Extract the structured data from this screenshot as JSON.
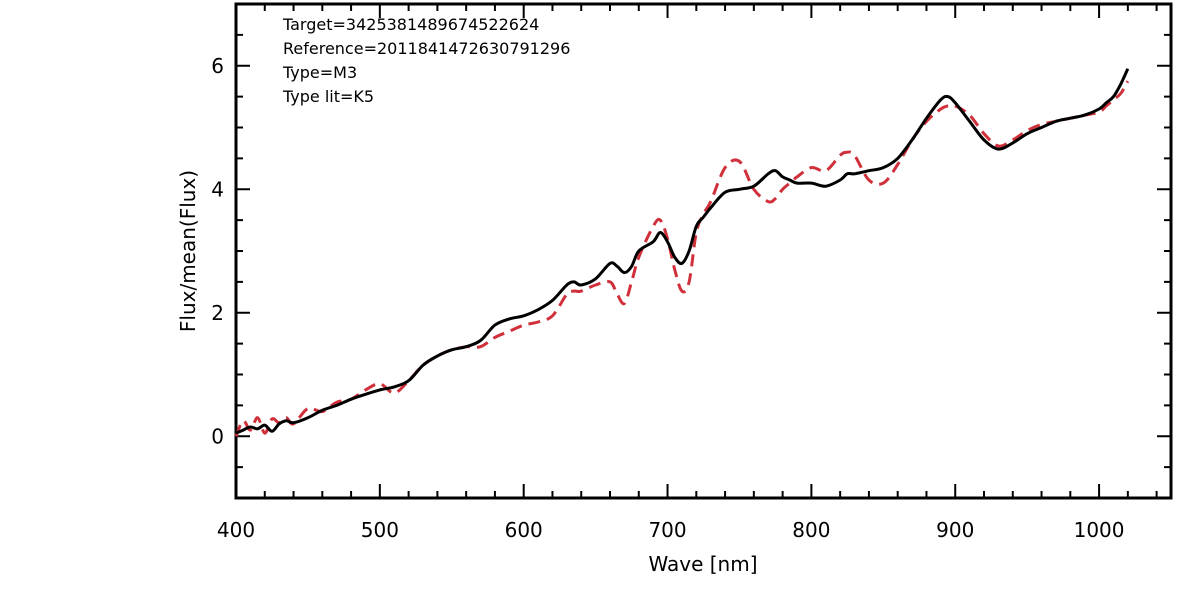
{
  "chart_data": {
    "type": "line",
    "xlabel": "Wave [nm]",
    "ylabel": "Flux/mean(Flux)",
    "xlim": [
      400,
      1050
    ],
    "ylim": [
      -1,
      7
    ],
    "xticks": [
      400,
      500,
      600,
      700,
      800,
      900,
      1000
    ],
    "yticks": [
      0,
      2,
      4,
      6
    ],
    "grid": false,
    "annotations": [
      "Target=3425381489674522624",
      "Reference=2011841472630791296",
      "Type=M3",
      "Type lit=K5"
    ],
    "colors": {
      "target": "#000000",
      "reference": "#d0303a"
    },
    "series": [
      {
        "style": "solid",
        "x": [
          400,
          405,
          410,
          415,
          420,
          425,
          430,
          435,
          440,
          450,
          460,
          470,
          480,
          490,
          500,
          510,
          520,
          530,
          540,
          550,
          560,
          570,
          580,
          590,
          600,
          610,
          620,
          630,
          635,
          640,
          650,
          660,
          665,
          670,
          675,
          680,
          690,
          695,
          700,
          705,
          710,
          715,
          720,
          725,
          730,
          740,
          750,
          760,
          770,
          775,
          780,
          785,
          790,
          800,
          810,
          820,
          825,
          830,
          840,
          850,
          860,
          870,
          880,
          890,
          895,
          900,
          910,
          920,
          930,
          940,
          950,
          960,
          970,
          980,
          990,
          1000,
          1005,
          1010,
          1015,
          1020
        ],
        "y": [
          0.05,
          0.1,
          0.15,
          0.12,
          0.18,
          0.08,
          0.2,
          0.25,
          0.22,
          0.3,
          0.42,
          0.5,
          0.6,
          0.68,
          0.75,
          0.8,
          0.9,
          1.15,
          1.3,
          1.4,
          1.45,
          1.55,
          1.8,
          1.9,
          1.95,
          2.05,
          2.2,
          2.45,
          2.5,
          2.45,
          2.55,
          2.8,
          2.75,
          2.65,
          2.75,
          3.0,
          3.15,
          3.3,
          3.15,
          2.9,
          2.8,
          3.0,
          3.4,
          3.55,
          3.7,
          3.95,
          4.0,
          4.05,
          4.25,
          4.3,
          4.2,
          4.15,
          4.1,
          4.1,
          4.05,
          4.15,
          4.25,
          4.25,
          4.3,
          4.35,
          4.5,
          4.8,
          5.15,
          5.45,
          5.5,
          5.4,
          5.1,
          4.8,
          4.65,
          4.75,
          4.9,
          5.0,
          5.1,
          5.15,
          5.2,
          5.3,
          5.4,
          5.5,
          5.7,
          5.95
        ]
      },
      {
        "style": "dashed",
        "x": [
          400,
          405,
          410,
          415,
          420,
          425,
          430,
          435,
          440,
          450,
          460,
          470,
          480,
          490,
          500,
          510,
          520,
          530,
          540,
          550,
          560,
          570,
          580,
          590,
          600,
          610,
          620,
          630,
          635,
          640,
          650,
          660,
          665,
          670,
          675,
          680,
          690,
          695,
          700,
          705,
          710,
          715,
          720,
          725,
          730,
          740,
          750,
          760,
          770,
          775,
          780,
          785,
          790,
          800,
          810,
          820,
          825,
          830,
          840,
          850,
          860,
          870,
          880,
          890,
          895,
          900,
          910,
          920,
          930,
          940,
          950,
          960,
          970,
          980,
          990,
          1000,
          1005,
          1010,
          1015,
          1020
        ],
        "y": [
          0.0,
          0.25,
          0.1,
          0.3,
          0.05,
          0.28,
          0.22,
          0.3,
          0.2,
          0.45,
          0.4,
          0.55,
          0.6,
          0.75,
          0.85,
          0.7,
          0.9,
          1.15,
          1.3,
          1.4,
          1.45,
          1.45,
          1.6,
          1.7,
          1.8,
          1.85,
          1.95,
          2.3,
          2.35,
          2.35,
          2.45,
          2.5,
          2.3,
          2.15,
          2.5,
          2.9,
          3.4,
          3.5,
          3.2,
          2.7,
          2.35,
          2.5,
          3.3,
          3.6,
          3.8,
          4.35,
          4.45,
          4.0,
          3.8,
          3.85,
          4.0,
          4.1,
          4.2,
          4.35,
          4.3,
          4.55,
          4.6,
          4.55,
          4.15,
          4.1,
          4.4,
          4.8,
          5.1,
          5.3,
          5.35,
          5.35,
          5.2,
          4.9,
          4.7,
          4.8,
          4.95,
          5.05,
          5.1,
          5.15,
          5.2,
          5.25,
          5.35,
          5.45,
          5.55,
          5.75
        ]
      }
    ]
  }
}
